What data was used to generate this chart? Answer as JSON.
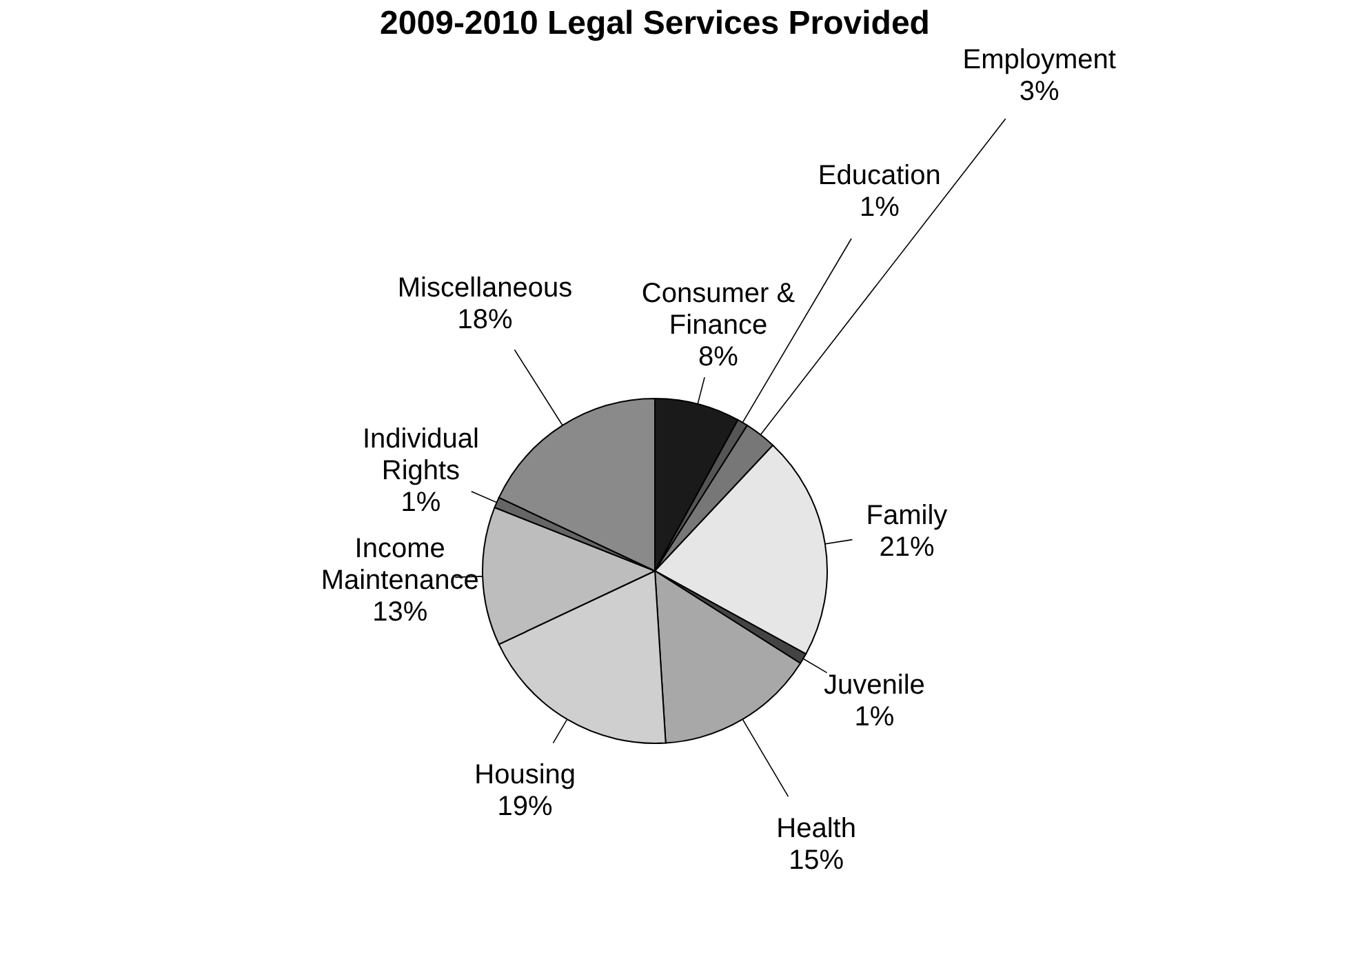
{
  "chart_data": {
    "type": "pie",
    "title": "2009-2010 Legal Services Provided",
    "categories": [
      "Consumer & Finance",
      "Education",
      "Employment",
      "Family",
      "Juvenile",
      "Health",
      "Housing",
      "Income Maintenance",
      "Individual Rights",
      "Miscellaneous"
    ],
    "values": [
      8,
      1,
      3,
      21,
      1,
      15,
      19,
      13,
      1,
      18
    ],
    "value_labels": [
      "8%",
      "1%",
      "3%",
      "21%",
      "1%",
      "15%",
      "19%",
      "13%",
      "1%",
      "18%"
    ],
    "colors": [
      "#1a1a1a",
      "#555555",
      "#777777",
      "#e6e6e6",
      "#444444",
      "#a8a8a8",
      "#cfcfcf",
      "#bdbdbd",
      "#666666",
      "#8a8a8a"
    ],
    "legend": false
  }
}
